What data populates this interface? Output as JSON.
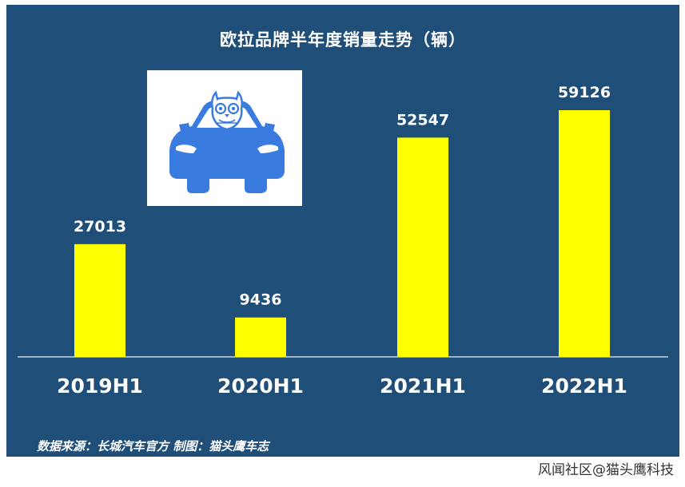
{
  "chart_data": {
    "type": "bar",
    "title": "欧拉品牌半年度销量走势（辆）",
    "categories": [
      "2019H1",
      "2020H1",
      "2021H1",
      "2022H1"
    ],
    "values": [
      27013,
      9436,
      52547,
      59126
    ],
    "data_labels": [
      "27013",
      "9436",
      "52547",
      "59126"
    ],
    "ylim": [
      0,
      59126
    ],
    "grid": false,
    "legend": "none",
    "colors": {
      "bar": "#ffff00",
      "background": "#1f4e79",
      "axis": "#c8d3e0",
      "text": "#ffffff"
    }
  },
  "logo": {
    "icon": "owl-car-logo-icon",
    "colors": {
      "car": "#3a7be0",
      "owl": "#3a7be0"
    }
  },
  "source_note": "数据来源：长城汽车官方  制图：猫头鹰车志",
  "watermark": "风闻社区@猫头鹰科技"
}
